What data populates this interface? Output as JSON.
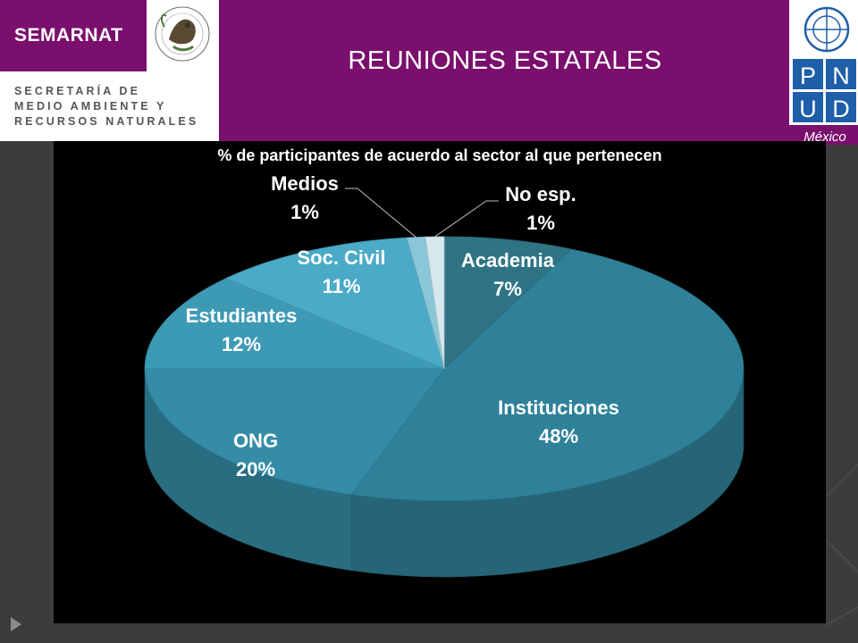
{
  "header": {
    "brand_name": "SEMARNAT",
    "agency_line1": "SECRETARÍA DE",
    "agency_line2": "MEDIO AMBIENTE Y",
    "agency_line3": "RECURSOS NATURALES",
    "title": "REUNIONES  ESTATALES",
    "seal_text": "ESTADOS UNIDOS MEXICANOS",
    "undp_letters": [
      "P",
      "N",
      "U",
      "D"
    ],
    "undp_country": "México"
  },
  "colors": {
    "header_purple": "#7a0f6d",
    "background": "#3c3c3c",
    "chart_bg": "#000000"
  },
  "chart_data": {
    "type": "pie",
    "title": "% de participantes de acuerdo al sector al que pertenecen",
    "style": "3d",
    "label_color": "#ffffff",
    "slices": [
      {
        "label": "Academia",
        "value": 7,
        "text": "7%",
        "color": "#2e7484"
      },
      {
        "label": "Instituciones",
        "value": 48,
        "text": "48%",
        "color": "#2f8199"
      },
      {
        "label": "ONG",
        "value": 20,
        "text": "20%",
        "color": "#348ca6"
      },
      {
        "label": "Estudiantes",
        "value": 12,
        "text": "12%",
        "color": "#3d9ab5"
      },
      {
        "label": "Soc. Civil",
        "value": 11,
        "text": "11%",
        "color": "#4aaac8"
      },
      {
        "label": "Medios",
        "value": 1,
        "text": "1%",
        "color": "#89c6d8"
      },
      {
        "label": "No esp.",
        "value": 1,
        "text": "1%",
        "color": "#d6e8ee"
      }
    ]
  }
}
